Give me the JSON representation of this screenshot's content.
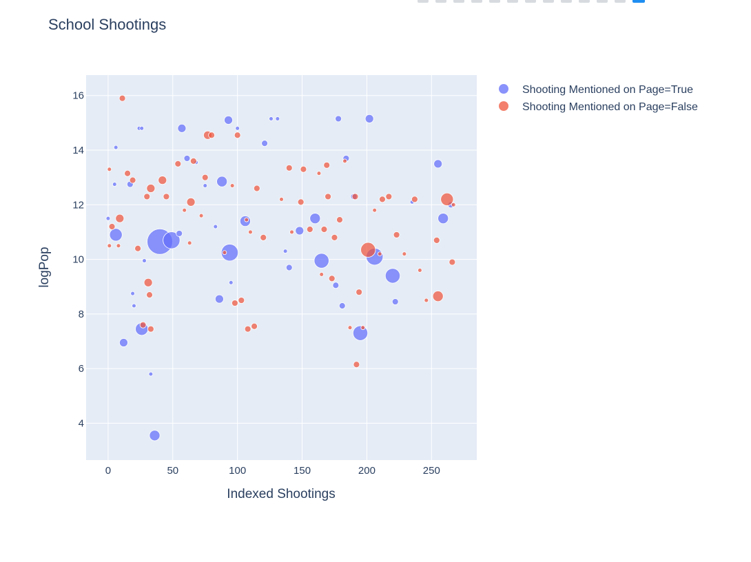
{
  "toolbar": {
    "icons": [
      "camera-icon",
      "zoom-icon",
      "pan-icon",
      "box-select-icon",
      "lasso-icon",
      "zoom-in-icon",
      "zoom-out-icon",
      "autoscale-icon",
      "reset-axes-icon",
      "spike-icon",
      "hover-closest-icon",
      "hover-compare-icon",
      "plotly-logo-icon"
    ]
  },
  "colors": {
    "plot_bg": "#e5ecf6",
    "grid": "#ffffff",
    "text": "#2a3f5f",
    "series_true": "#636efa",
    "series_false": "#ef553b"
  },
  "chart_data": {
    "type": "scatter",
    "title": "School Shootings",
    "xlabel": "Indexed Shootings",
    "ylabel": "logPop",
    "xlim": [
      -17,
      285
    ],
    "ylim": [
      2.65,
      16.75
    ],
    "xticks": [
      0,
      50,
      100,
      150,
      200,
      250
    ],
    "yticks": [
      4,
      6,
      8,
      10,
      12,
      14,
      16
    ],
    "grid": true,
    "legend_position": "top-right, outside plot",
    "size_encoding": "bubble size",
    "series": [
      {
        "name": "Shooting Mentioned on Page=True",
        "color": "#636efa",
        "points": [
          {
            "x": 0,
            "y": 11.5,
            "s": 1
          },
          {
            "x": 5,
            "y": 12.75,
            "s": 1
          },
          {
            "x": 6,
            "y": 14.1,
            "s": 1
          },
          {
            "x": 6,
            "y": 10.9,
            "s": 5
          },
          {
            "x": 12,
            "y": 6.95,
            "s": 3
          },
          {
            "x": 17,
            "y": 12.75,
            "s": 2
          },
          {
            "x": 19,
            "y": 8.75,
            "s": 1
          },
          {
            "x": 20,
            "y": 8.3,
            "s": 1
          },
          {
            "x": 24,
            "y": 14.8,
            "s": 1
          },
          {
            "x": 26,
            "y": 14.8,
            "s": 1
          },
          {
            "x": 26,
            "y": 7.45,
            "s": 5
          },
          {
            "x": 28,
            "y": 9.95,
            "s": 1
          },
          {
            "x": 33,
            "y": 5.8,
            "s": 1
          },
          {
            "x": 36,
            "y": 3.55,
            "s": 4
          },
          {
            "x": 40,
            "y": 10.65,
            "s": 11
          },
          {
            "x": 49,
            "y": 10.7,
            "s": 7
          },
          {
            "x": 55,
            "y": 10.95,
            "s": 2
          },
          {
            "x": 57,
            "y": 14.8,
            "s": 3
          },
          {
            "x": 61,
            "y": 13.7,
            "s": 2
          },
          {
            "x": 68,
            "y": 13.55,
            "s": 1
          },
          {
            "x": 75,
            "y": 12.7,
            "s": 1
          },
          {
            "x": 83,
            "y": 11.2,
            "s": 1
          },
          {
            "x": 86,
            "y": 8.55,
            "s": 3
          },
          {
            "x": 88,
            "y": 12.85,
            "s": 4
          },
          {
            "x": 93,
            "y": 15.1,
            "s": 3
          },
          {
            "x": 94,
            "y": 10.25,
            "s": 7
          },
          {
            "x": 95,
            "y": 9.15,
            "s": 1
          },
          {
            "x": 100,
            "y": 14.8,
            "s": 1
          },
          {
            "x": 106,
            "y": 11.4,
            "s": 4
          },
          {
            "x": 121,
            "y": 14.25,
            "s": 2
          },
          {
            "x": 126,
            "y": 15.15,
            "s": 1
          },
          {
            "x": 131,
            "y": 15.15,
            "s": 1
          },
          {
            "x": 137,
            "y": 10.3,
            "s": 1
          },
          {
            "x": 140,
            "y": 9.7,
            "s": 2
          },
          {
            "x": 148,
            "y": 11.05,
            "s": 3
          },
          {
            "x": 160,
            "y": 11.5,
            "s": 4
          },
          {
            "x": 165,
            "y": 9.95,
            "s": 6
          },
          {
            "x": 176,
            "y": 9.05,
            "s": 2
          },
          {
            "x": 178,
            "y": 15.15,
            "s": 2
          },
          {
            "x": 181,
            "y": 8.3,
            "s": 2
          },
          {
            "x": 184,
            "y": 13.7,
            "s": 2
          },
          {
            "x": 190,
            "y": 12.3,
            "s": 2
          },
          {
            "x": 195,
            "y": 7.3,
            "s": 6
          },
          {
            "x": 202,
            "y": 15.15,
            "s": 3
          },
          {
            "x": 206,
            "y": 10.1,
            "s": 7
          },
          {
            "x": 220,
            "y": 9.4,
            "s": 6
          },
          {
            "x": 222,
            "y": 8.45,
            "s": 2
          },
          {
            "x": 235,
            "y": 12.1,
            "s": 1
          },
          {
            "x": 255,
            "y": 13.5,
            "s": 3
          },
          {
            "x": 259,
            "y": 11.5,
            "s": 4
          },
          {
            "x": 265,
            "y": 12.0,
            "s": 2
          }
        ]
      },
      {
        "name": "Shooting Mentioned on Page=False",
        "color": "#ef553b",
        "points": [
          {
            "x": 1,
            "y": 13.3,
            "s": 1
          },
          {
            "x": 1,
            "y": 10.5,
            "s": 1
          },
          {
            "x": 3,
            "y": 11.2,
            "s": 2
          },
          {
            "x": 8,
            "y": 10.5,
            "s": 1
          },
          {
            "x": 9,
            "y": 11.5,
            "s": 3
          },
          {
            "x": 11,
            "y": 15.9,
            "s": 2
          },
          {
            "x": 15,
            "y": 13.15,
            "s": 2
          },
          {
            "x": 19,
            "y": 12.9,
            "s": 2
          },
          {
            "x": 23,
            "y": 10.4,
            "s": 2
          },
          {
            "x": 27,
            "y": 7.6,
            "s": 2
          },
          {
            "x": 30,
            "y": 12.3,
            "s": 2
          },
          {
            "x": 31,
            "y": 9.15,
            "s": 3
          },
          {
            "x": 32,
            "y": 8.7,
            "s": 2
          },
          {
            "x": 33,
            "y": 12.6,
            "s": 3
          },
          {
            "x": 33,
            "y": 7.45,
            "s": 2
          },
          {
            "x": 42,
            "y": 12.9,
            "s": 3
          },
          {
            "x": 45,
            "y": 12.3,
            "s": 2
          },
          {
            "x": 54,
            "y": 13.5,
            "s": 2
          },
          {
            "x": 59,
            "y": 11.8,
            "s": 1
          },
          {
            "x": 63,
            "y": 10.6,
            "s": 1
          },
          {
            "x": 64,
            "y": 12.1,
            "s": 3
          },
          {
            "x": 66,
            "y": 13.6,
            "s": 2
          },
          {
            "x": 72,
            "y": 11.6,
            "s": 1
          },
          {
            "x": 75,
            "y": 13.0,
            "s": 2
          },
          {
            "x": 77,
            "y": 14.55,
            "s": 3
          },
          {
            "x": 80,
            "y": 14.55,
            "s": 2
          },
          {
            "x": 90,
            "y": 10.25,
            "s": 1
          },
          {
            "x": 96,
            "y": 12.7,
            "s": 1
          },
          {
            "x": 98,
            "y": 8.4,
            "s": 2
          },
          {
            "x": 100,
            "y": 14.55,
            "s": 2
          },
          {
            "x": 103,
            "y": 8.5,
            "s": 2
          },
          {
            "x": 107,
            "y": 11.45,
            "s": 1
          },
          {
            "x": 108,
            "y": 7.45,
            "s": 2
          },
          {
            "x": 110,
            "y": 11.0,
            "s": 1
          },
          {
            "x": 113,
            "y": 7.55,
            "s": 2
          },
          {
            "x": 115,
            "y": 12.6,
            "s": 2
          },
          {
            "x": 120,
            "y": 10.8,
            "s": 2
          },
          {
            "x": 134,
            "y": 12.2,
            "s": 1
          },
          {
            "x": 140,
            "y": 13.35,
            "s": 2
          },
          {
            "x": 142,
            "y": 11.0,
            "s": 1
          },
          {
            "x": 149,
            "y": 12.1,
            "s": 2
          },
          {
            "x": 151,
            "y": 13.3,
            "s": 2
          },
          {
            "x": 156,
            "y": 11.1,
            "s": 2
          },
          {
            "x": 163,
            "y": 13.15,
            "s": 1
          },
          {
            "x": 165,
            "y": 9.45,
            "s": 1
          },
          {
            "x": 167,
            "y": 11.1,
            "s": 2
          },
          {
            "x": 169,
            "y": 13.45,
            "s": 2
          },
          {
            "x": 170,
            "y": 12.3,
            "s": 2
          },
          {
            "x": 173,
            "y": 9.3,
            "s": 2
          },
          {
            "x": 175,
            "y": 10.8,
            "s": 2
          },
          {
            "x": 179,
            "y": 11.45,
            "s": 2
          },
          {
            "x": 183,
            "y": 13.6,
            "s": 1
          },
          {
            "x": 187,
            "y": 7.5,
            "s": 1
          },
          {
            "x": 191,
            "y": 12.3,
            "s": 2
          },
          {
            "x": 192,
            "y": 6.15,
            "s": 2
          },
          {
            "x": 194,
            "y": 8.8,
            "s": 2
          },
          {
            "x": 197,
            "y": 7.5,
            "s": 1
          },
          {
            "x": 201,
            "y": 10.35,
            "s": 6
          },
          {
            "x": 206,
            "y": 11.8,
            "s": 1
          },
          {
            "x": 210,
            "y": 10.2,
            "s": 1
          },
          {
            "x": 212,
            "y": 12.2,
            "s": 2
          },
          {
            "x": 217,
            "y": 12.3,
            "s": 2
          },
          {
            "x": 223,
            "y": 10.9,
            "s": 2
          },
          {
            "x": 229,
            "y": 10.2,
            "s": 1
          },
          {
            "x": 237,
            "y": 12.2,
            "s": 2
          },
          {
            "x": 241,
            "y": 9.6,
            "s": 1
          },
          {
            "x": 246,
            "y": 8.5,
            "s": 1
          },
          {
            "x": 254,
            "y": 10.7,
            "s": 2
          },
          {
            "x": 255,
            "y": 8.65,
            "s": 4
          },
          {
            "x": 262,
            "y": 12.2,
            "s": 5
          },
          {
            "x": 266,
            "y": 9.9,
            "s": 2
          },
          {
            "x": 267,
            "y": 12.0,
            "s": 1
          }
        ]
      }
    ]
  }
}
